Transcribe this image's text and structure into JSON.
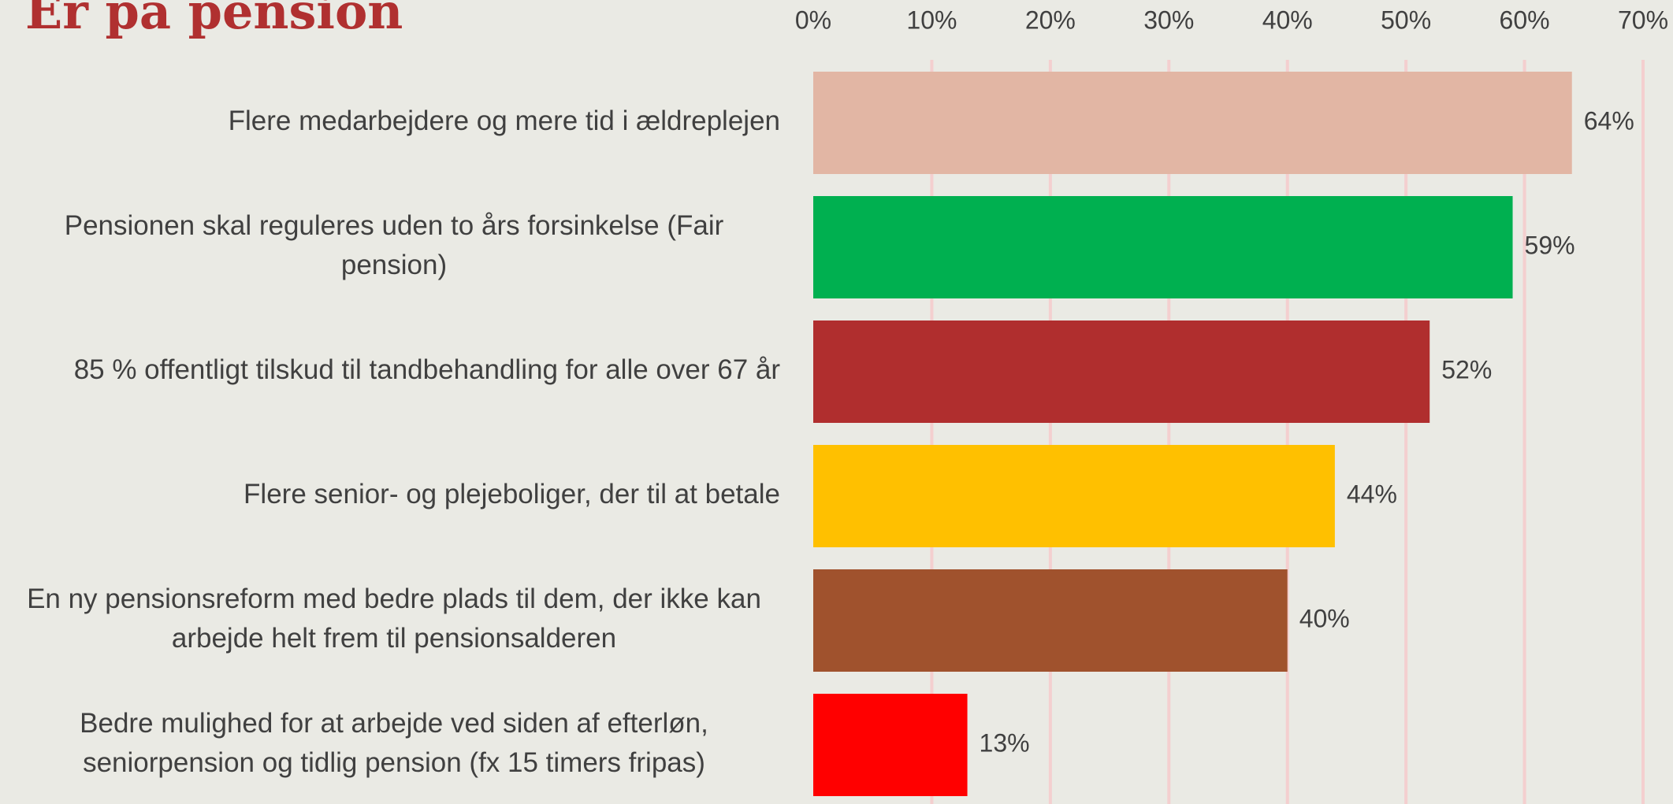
{
  "chart_data": {
    "type": "bar",
    "orientation": "horizontal",
    "title": "Er på pension",
    "categories": [
      "Flere medarbejdere og mere tid i ældreplejen",
      "Pensionen skal reguleres uden to års forsinkelse (Fair pension)",
      "85 % offentligt tilskud til tandbehandling for alle over 67 år",
      "Flere senior- og plejeboliger, der til at betale",
      "En ny pensionsreform med bedre plads til dem, der ikke kan arbejde helt frem til pensionsalderen",
      "Bedre mulighed for at arbejde ved siden af efterløn, seniorpension og tidlig pension (fx 15 timers fripas)"
    ],
    "values": [
      64,
      59,
      52,
      44,
      40,
      13
    ],
    "value_labels": [
      "64%",
      "59%",
      "52%",
      "44%",
      "40%",
      "13%"
    ],
    "colors": [
      "#e2b6a4",
      "#00b050",
      "#b02e2e",
      "#ffc000",
      "#a0522d",
      "#ff0000"
    ],
    "xlim": [
      0,
      70
    ],
    "xticks": [
      {
        "value": 0,
        "label": "0%"
      },
      {
        "value": 10,
        "label": "10%"
      },
      {
        "value": 20,
        "label": "20%"
      },
      {
        "value": 30,
        "label": "30%"
      },
      {
        "value": 40,
        "label": "40%"
      },
      {
        "value": 50,
        "label": "50%"
      },
      {
        "value": 60,
        "label": "60%"
      },
      {
        "value": 70,
        "label": "70%"
      }
    ],
    "grid": true
  }
}
